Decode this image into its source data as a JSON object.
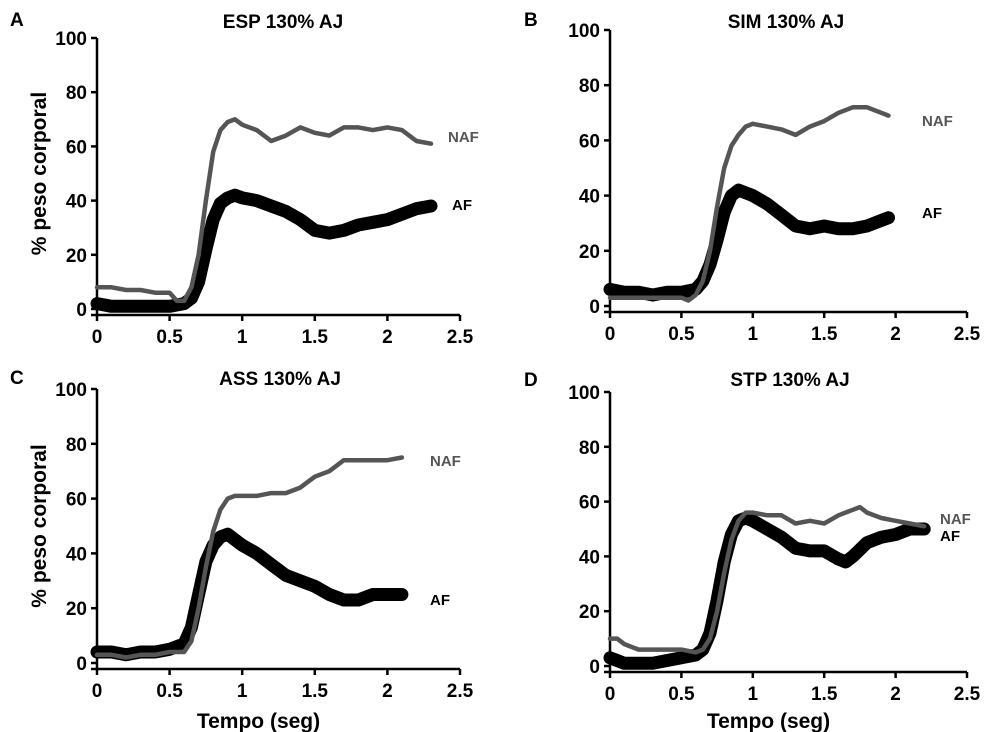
{
  "chart_data": [
    {
      "type": "line",
      "panel": "A",
      "title": "ESP 130% AJ",
      "xlabel": "",
      "ylabel": "% peso corporal",
      "xlim": [
        0,
        2.5
      ],
      "ylim": [
        0,
        100
      ],
      "xticks": [
        "0",
        "0.5",
        "1",
        "1.5",
        "2",
        "2.5"
      ],
      "yticks": [
        "0",
        "20",
        "40",
        "60",
        "80",
        "100"
      ],
      "series": [
        {
          "name": "NAF",
          "color": "#555555",
          "x": [
            0,
            0.1,
            0.2,
            0.3,
            0.4,
            0.5,
            0.55,
            0.6,
            0.65,
            0.7,
            0.75,
            0.8,
            0.85,
            0.9,
            0.95,
            1.0,
            1.1,
            1.2,
            1.3,
            1.4,
            1.5,
            1.6,
            1.7,
            1.8,
            1.9,
            2.0,
            2.1,
            2.2,
            2.3
          ],
          "y": [
            8,
            8,
            7,
            7,
            6,
            6,
            3,
            3,
            8,
            20,
            40,
            58,
            66,
            69,
            70,
            68,
            66,
            62,
            64,
            67,
            65,
            64,
            67,
            67,
            66,
            67,
            66,
            62,
            61
          ]
        },
        {
          "name": "AF",
          "color": "#000000",
          "x": [
            0,
            0.1,
            0.2,
            0.3,
            0.4,
            0.5,
            0.6,
            0.65,
            0.7,
            0.75,
            0.8,
            0.85,
            0.9,
            0.95,
            1.0,
            1.1,
            1.2,
            1.3,
            1.4,
            1.5,
            1.6,
            1.7,
            1.8,
            1.9,
            2.0,
            2.1,
            2.2,
            2.3
          ],
          "y": [
            2,
            1,
            1,
            1,
            1,
            1,
            2,
            4,
            10,
            22,
            33,
            39,
            41,
            42,
            41,
            40,
            38,
            36,
            33,
            29,
            28,
            29,
            31,
            32,
            33,
            35,
            37,
            38
          ]
        }
      ]
    },
    {
      "type": "line",
      "panel": "B",
      "title": "SIM 130% AJ",
      "xlabel": "",
      "ylabel": "",
      "xlim": [
        0,
        2.5
      ],
      "ylim": [
        0,
        100
      ],
      "xticks": [
        "0",
        "0.5",
        "1",
        "1.5",
        "2",
        "2.5"
      ],
      "yticks": [
        "0",
        "20",
        "40",
        "60",
        "80",
        "100"
      ],
      "series": [
        {
          "name": "NAF",
          "color": "#555555",
          "x": [
            0,
            0.1,
            0.2,
            0.3,
            0.4,
            0.5,
            0.55,
            0.6,
            0.65,
            0.7,
            0.75,
            0.8,
            0.85,
            0.9,
            0.95,
            1.0,
            1.1,
            1.2,
            1.3,
            1.4,
            1.5,
            1.6,
            1.7,
            1.8,
            1.9,
            1.95
          ],
          "y": [
            3,
            3,
            3,
            3,
            3,
            3,
            2,
            4,
            9,
            20,
            36,
            50,
            58,
            62,
            65,
            66,
            65,
            64,
            62,
            65,
            67,
            70,
            72,
            72,
            70,
            69
          ]
        },
        {
          "name": "AF",
          "color": "#000000",
          "x": [
            0,
            0.1,
            0.2,
            0.3,
            0.4,
            0.5,
            0.6,
            0.65,
            0.7,
            0.75,
            0.8,
            0.85,
            0.9,
            0.95,
            1.0,
            1.1,
            1.2,
            1.3,
            1.4,
            1.5,
            1.6,
            1.7,
            1.8,
            1.9,
            1.95
          ],
          "y": [
            6,
            5,
            5,
            4,
            5,
            5,
            6,
            9,
            15,
            24,
            34,
            40,
            42,
            41,
            40,
            37,
            33,
            29,
            28,
            29,
            28,
            28,
            29,
            31,
            32
          ]
        }
      ]
    },
    {
      "type": "line",
      "panel": "C",
      "title": "ASS 130% AJ",
      "xlabel": "Tempo (seg)",
      "ylabel": "% peso corporal",
      "xlim": [
        0,
        2.5
      ],
      "ylim": [
        0,
        100
      ],
      "xticks": [
        "0",
        "0.5",
        "1",
        "1.5",
        "2",
        "2.5"
      ],
      "yticks": [
        "0",
        "20",
        "40",
        "60",
        "80",
        "100"
      ],
      "series": [
        {
          "name": "NAF",
          "color": "#555555",
          "x": [
            0,
            0.1,
            0.2,
            0.3,
            0.4,
            0.5,
            0.6,
            0.65,
            0.7,
            0.75,
            0.8,
            0.85,
            0.9,
            0.95,
            1.0,
            1.1,
            1.2,
            1.3,
            1.4,
            1.5,
            1.6,
            1.7,
            1.8,
            1.9,
            2.0,
            2.1
          ],
          "y": [
            3,
            3,
            2,
            3,
            3,
            4,
            4,
            8,
            20,
            35,
            48,
            56,
            60,
            61,
            61,
            61,
            62,
            62,
            64,
            68,
            70,
            74,
            74,
            74,
            74,
            75
          ]
        },
        {
          "name": "AF",
          "color": "#000000",
          "x": [
            0,
            0.1,
            0.2,
            0.3,
            0.4,
            0.5,
            0.6,
            0.65,
            0.7,
            0.75,
            0.8,
            0.85,
            0.9,
            0.95,
            1.0,
            1.1,
            1.2,
            1.3,
            1.4,
            1.5,
            1.6,
            1.7,
            1.8,
            1.9,
            2.0,
            2.1
          ],
          "y": [
            4,
            4,
            3,
            4,
            4,
            5,
            7,
            13,
            25,
            37,
            43,
            46,
            47,
            45,
            43,
            40,
            36,
            32,
            30,
            28,
            25,
            23,
            23,
            25,
            25,
            25
          ]
        }
      ]
    },
    {
      "type": "line",
      "panel": "D",
      "title": "STP 130% AJ",
      "xlabel": "Tempo (seg)",
      "ylabel": "",
      "xlim": [
        0,
        2.5
      ],
      "ylim": [
        0,
        100
      ],
      "xticks": [
        "0",
        "0.5",
        "1",
        "1.5",
        "2",
        "2.5"
      ],
      "yticks": [
        "0",
        "20",
        "40",
        "60",
        "80",
        "100"
      ],
      "series": [
        {
          "name": "NAF",
          "color": "#555555",
          "x": [
            0,
            0.05,
            0.1,
            0.2,
            0.3,
            0.4,
            0.5,
            0.6,
            0.65,
            0.7,
            0.75,
            0.8,
            0.85,
            0.9,
            0.95,
            1.0,
            1.1,
            1.2,
            1.3,
            1.4,
            1.5,
            1.6,
            1.7,
            1.75,
            1.8,
            1.9,
            2.0,
            2.1,
            2.2
          ],
          "y": [
            10,
            10,
            8,
            6,
            6,
            6,
            6,
            5,
            6,
            10,
            20,
            34,
            46,
            53,
            56,
            56,
            55,
            55,
            52,
            53,
            52,
            55,
            57,
            58,
            56,
            54,
            53,
            52,
            51
          ]
        },
        {
          "name": "AF",
          "color": "#000000",
          "x": [
            0,
            0.05,
            0.1,
            0.2,
            0.3,
            0.4,
            0.5,
            0.6,
            0.65,
            0.7,
            0.75,
            0.8,
            0.85,
            0.9,
            0.95,
            1.0,
            1.1,
            1.2,
            1.3,
            1.4,
            1.5,
            1.6,
            1.65,
            1.7,
            1.8,
            1.9,
            2.0,
            2.1,
            2.2
          ],
          "y": [
            3,
            2,
            1,
            1,
            1,
            2,
            3,
            4,
            6,
            12,
            24,
            38,
            48,
            53,
            54,
            53,
            50,
            47,
            43,
            42,
            42,
            39,
            38,
            40,
            45,
            47,
            48,
            50,
            50
          ]
        }
      ]
    }
  ]
}
